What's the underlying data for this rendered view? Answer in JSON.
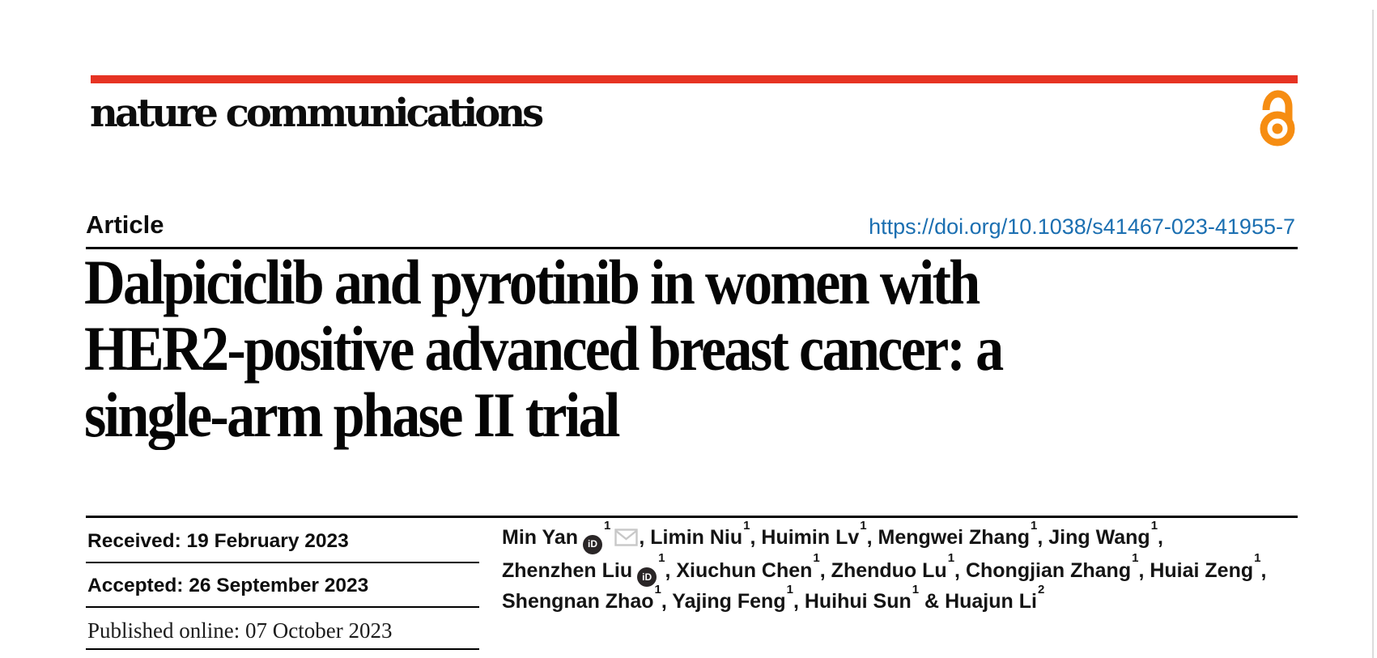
{
  "colors": {
    "accent_red": "#e63323",
    "open_access_orange": "#f68d12",
    "doi_blue": "#1b6fb1",
    "envelope_gray": "#c8c8c8",
    "page_edge_gray": "#dcdcdc"
  },
  "masthead": {
    "wordmark": "nature communications",
    "open_access_icon": "open-access-lock"
  },
  "article": {
    "kicker": "Article",
    "doi": "https://doi.org/10.1038/s41467-023-41955-7",
    "title_lines": [
      "Dalpiciclib and pyrotinib in women with",
      "HER2-positive advanced breast cancer: a",
      "single-arm phase II trial"
    ]
  },
  "dates": [
    {
      "text": "Received: 19 February 2023"
    },
    {
      "text": "Accepted: 26 September 2023"
    },
    {
      "text": "Published online: 07 October 2023"
    }
  ],
  "authors": {
    "orcid_icon_label": "iD",
    "lines": [
      {
        "segments": [
          {
            "pre": "",
            "text": "Min Yan",
            "orcid": true,
            "sup": "1",
            "envelope": true
          },
          {
            "pre": ", ",
            "text": "Limin Niu",
            "sup": "1"
          },
          {
            "pre": ", ",
            "text": "Huimin Lv",
            "sup": "1"
          },
          {
            "pre": ", ",
            "text": "Mengwei Zhang",
            "sup": "1"
          },
          {
            "pre": ", ",
            "text": "Jing Wang",
            "sup": "1"
          }
        ],
        "trailing": ","
      },
      {
        "segments": [
          {
            "pre": "",
            "text": "Zhenzhen Liu",
            "orcid": true,
            "sup": "1"
          },
          {
            "pre": ", ",
            "text": "Xiuchun Chen",
            "sup": "1"
          },
          {
            "pre": ", ",
            "text": "Zhenduo Lu",
            "sup": "1"
          },
          {
            "pre": ", ",
            "text": "Chongjian Zhang",
            "sup": "1"
          },
          {
            "pre": ", ",
            "text": "Huiai Zeng",
            "sup": "1"
          }
        ],
        "trailing": ","
      },
      {
        "segments": [
          {
            "pre": "",
            "text": "Shengnan Zhao",
            "sup": "1"
          },
          {
            "pre": ", ",
            "text": "Yajing Feng",
            "sup": "1"
          },
          {
            "pre": ", ",
            "text": "Huihui Sun",
            "sup": "1"
          },
          {
            "pre": " & ",
            "text": "Huajun Li",
            "sup": "2"
          }
        ],
        "trailing": ""
      }
    ]
  }
}
